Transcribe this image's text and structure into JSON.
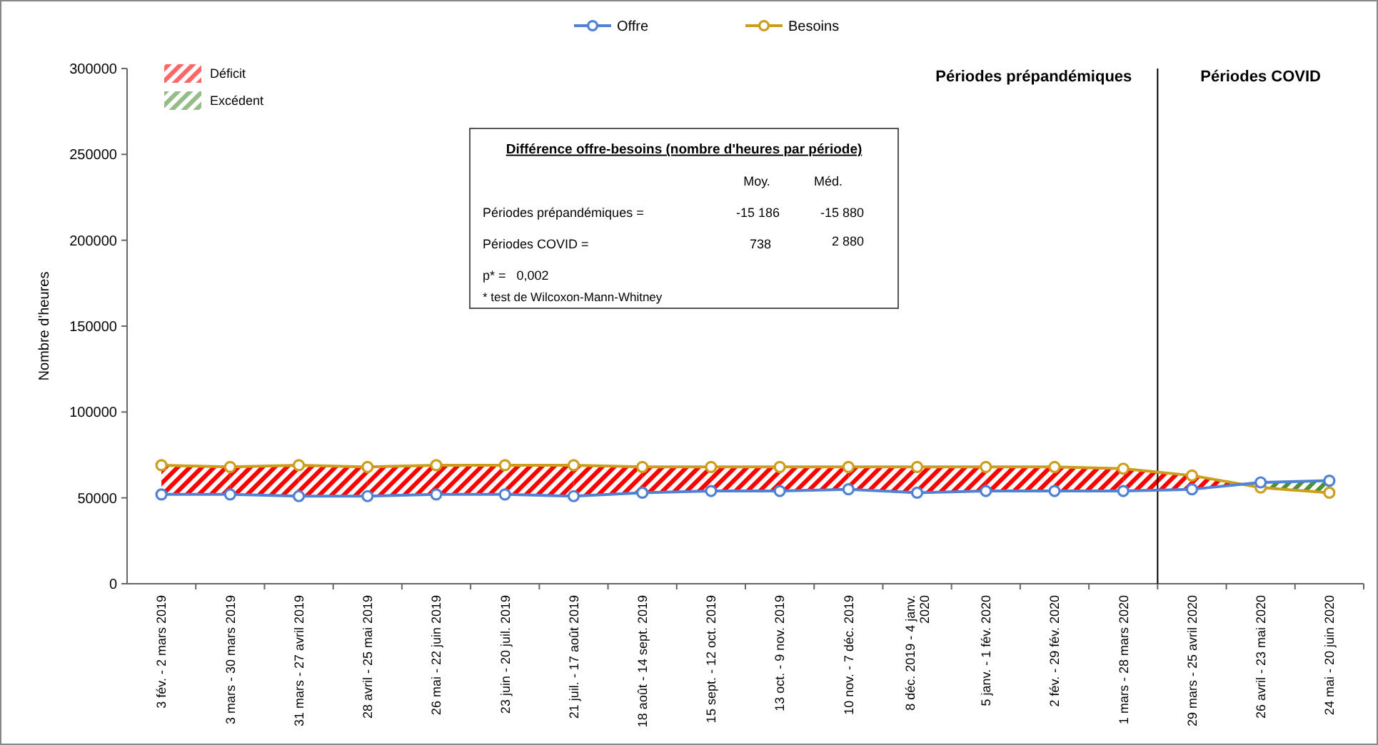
{
  "chart_data": {
    "type": "line",
    "ylabel": "Nombre d'heures",
    "categories": [
      "3 fév. - 2 mars 2019",
      "3 mars - 30 mars 2019",
      "31 mars - 27 avril 2019",
      "28 avril - 25 mai 2019",
      "26 mai - 22 juin 2019",
      "23 juin - 20 juil. 2019",
      "21 juil. - 17 août 2019",
      "18 août - 14 sept. 2019",
      "15 sept. - 12 oct. 2019",
      "13 oct. - 9 nov. 2019",
      "10 nov. - 7 déc. 2019",
      "8 déc. 2019 - 4 janv. 2020",
      "5 janv. - 1 fév. 2020",
      "2 fév. - 29 fév. 2020",
      "1 mars - 28 mars 2020",
      "29 mars - 25 avril 2020",
      "26 avril - 23 mai 2020",
      "24 mai - 20 juin 2020"
    ],
    "series": [
      {
        "name": "Offre",
        "color": "#4f81d4",
        "values": [
          52000,
          52000,
          51000,
          51000,
          52000,
          52000,
          51000,
          53000,
          54000,
          54000,
          55000,
          53000,
          54000,
          54000,
          54000,
          55000,
          59000,
          60000
        ]
      },
      {
        "name": "Besoins",
        "color": "#cc9e1c",
        "values": [
          69000,
          68000,
          69000,
          68000,
          69000,
          69000,
          69000,
          68000,
          68000,
          68000,
          68000,
          68000,
          68000,
          68000,
          67000,
          63000,
          56000,
          53000
        ]
      }
    ],
    "ylim": [
      0,
      300000
    ],
    "yticks": [
      0,
      50000,
      100000,
      150000,
      200000,
      250000,
      300000
    ],
    "annotations": [
      "Périodes prépandémiques",
      "Périodes COVID",
      "Différence offre-besoins (nombre d'heures par période)",
      "Moy.",
      "Méd.",
      "Périodes prépandémiques =",
      "-15 186",
      "-15 880",
      "Périodes COVID =",
      "738",
      "2 880",
      "p* =   0,002",
      "* test de Wilcoxon-Mann-Whitney",
      "Déficit",
      "Excédent"
    ],
    "legend": "top",
    "marker": "circle",
    "line_style": "solid",
    "grid": false
  }
}
